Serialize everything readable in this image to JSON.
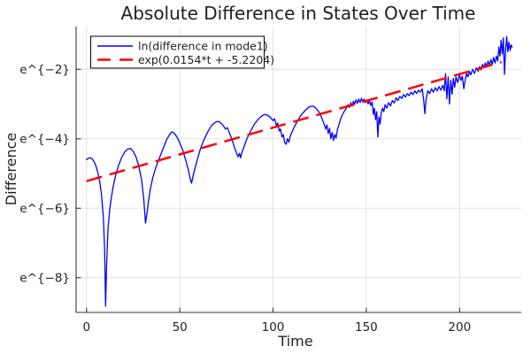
{
  "chart_data": {
    "type": "line",
    "title": "Absolute Difference in States Over Time",
    "xlabel": "Time",
    "ylabel": "Difference",
    "grid": true,
    "legend_position": "top-left",
    "y_scale": "log-e",
    "xlim": [
      -5.6,
      233.1
    ],
    "ylim": [
      -9.0,
      -0.77
    ],
    "x_ticks": {
      "values": [
        0,
        50,
        100,
        150,
        200
      ],
      "labels": [
        "0",
        "50",
        "100",
        "150",
        "200"
      ]
    },
    "y_ticks": {
      "values": [
        -2,
        -4,
        -6,
        -8
      ],
      "labels": [
        "e^{−2}",
        "e^{−4}",
        "e^{−6}",
        "e^{−8}"
      ]
    },
    "style": {
      "grid_color": "#e2e2e2",
      "axis_color": "#3a3a3a",
      "text_color": "#1f1f1f",
      "background": "#ffffff"
    },
    "series": [
      {
        "name": "ln(difference in mode1)",
        "color": "#0000ff",
        "style": "solid",
        "width": 1.3,
        "points": [
          [
            0,
            -4.6
          ],
          [
            1,
            -4.56
          ],
          [
            2,
            -4.55
          ],
          [
            3,
            -4.58
          ],
          [
            4,
            -4.66
          ],
          [
            5,
            -4.78
          ],
          [
            6,
            -4.96
          ],
          [
            7,
            -5.22
          ],
          [
            8,
            -5.6
          ],
          [
            9,
            -6.25
          ],
          [
            9.7,
            -7.2
          ],
          [
            10.2,
            -8.82
          ],
          [
            10.8,
            -7.55
          ],
          [
            11.5,
            -6.6
          ],
          [
            12.5,
            -6.0
          ],
          [
            13.5,
            -5.62
          ],
          [
            14.5,
            -5.32
          ],
          [
            16,
            -4.96
          ],
          [
            17.5,
            -4.72
          ],
          [
            19,
            -4.52
          ],
          [
            20.5,
            -4.38
          ],
          [
            22,
            -4.3
          ],
          [
            23.5,
            -4.28
          ],
          [
            25,
            -4.36
          ],
          [
            26.5,
            -4.52
          ],
          [
            28,
            -4.78
          ],
          [
            29.5,
            -5.18
          ],
          [
            30.7,
            -5.75
          ],
          [
            31.6,
            -6.43
          ],
          [
            32.4,
            -6.15
          ],
          [
            33.2,
            -5.8
          ],
          [
            34.2,
            -5.45
          ],
          [
            35.5,
            -5.12
          ],
          [
            37,
            -4.85
          ],
          [
            38.5,
            -4.63
          ],
          [
            40,
            -4.43
          ],
          [
            41.5,
            -4.22
          ],
          [
            43,
            -4.02
          ],
          [
            44.5,
            -3.88
          ],
          [
            45.8,
            -3.8
          ],
          [
            47,
            -3.84
          ],
          [
            48.5,
            -3.95
          ],
          [
            50,
            -4.12
          ],
          [
            51.5,
            -4.32
          ],
          [
            53,
            -4.58
          ],
          [
            54.5,
            -4.88
          ],
          [
            55.7,
            -5.18
          ],
          [
            56.3,
            -5.28
          ],
          [
            57,
            -5.1
          ],
          [
            58,
            -4.88
          ],
          [
            59.5,
            -4.58
          ],
          [
            61,
            -4.3
          ],
          [
            63,
            -4.02
          ],
          [
            65,
            -3.8
          ],
          [
            67,
            -3.62
          ],
          [
            68.5,
            -3.55
          ],
          [
            70,
            -3.5
          ],
          [
            71.5,
            -3.52
          ],
          [
            73,
            -3.6
          ],
          [
            74.5,
            -3.72
          ],
          [
            75.5,
            -3.68
          ],
          [
            76.5,
            -3.82
          ],
          [
            78,
            -4.02
          ],
          [
            79.5,
            -4.28
          ],
          [
            80.7,
            -4.45
          ],
          [
            81.3,
            -4.52
          ],
          [
            82,
            -4.42
          ],
          [
            82.6,
            -4.55
          ],
          [
            83.3,
            -4.4
          ],
          [
            84.5,
            -4.22
          ],
          [
            86,
            -4.0
          ],
          [
            88,
            -3.78
          ],
          [
            90,
            -3.58
          ],
          [
            92,
            -3.44
          ],
          [
            94,
            -3.34
          ],
          [
            95.5,
            -3.3
          ],
          [
            97,
            -3.32
          ],
          [
            98.5,
            -3.38
          ],
          [
            100,
            -3.48
          ],
          [
            100.8,
            -3.42
          ],
          [
            101.8,
            -3.62
          ],
          [
            102.5,
            -3.55
          ],
          [
            103.3,
            -3.78
          ],
          [
            104,
            -3.72
          ],
          [
            104.8,
            -3.95
          ],
          [
            105.5,
            -3.88
          ],
          [
            106.2,
            -4.1
          ],
          [
            107,
            -4.16
          ],
          [
            107.7,
            -4.0
          ],
          [
            108.5,
            -4.1
          ],
          [
            109.3,
            -3.92
          ],
          [
            110.2,
            -3.8
          ],
          [
            111.5,
            -3.65
          ],
          [
            113,
            -3.5
          ],
          [
            115,
            -3.32
          ],
          [
            117,
            -3.2
          ],
          [
            118.5,
            -3.12
          ],
          [
            120,
            -3.07
          ],
          [
            121.5,
            -3.06
          ],
          [
            123,
            -3.12
          ],
          [
            124.5,
            -3.22
          ],
          [
            126,
            -3.38
          ],
          [
            127.2,
            -3.55
          ],
          [
            128.2,
            -3.72
          ],
          [
            128.9,
            -3.6
          ],
          [
            129.6,
            -3.85
          ],
          [
            130.3,
            -3.7
          ],
          [
            131,
            -4.0
          ],
          [
            131.7,
            -3.82
          ],
          [
            132.4,
            -4.05
          ],
          [
            133.1,
            -3.88
          ],
          [
            133.8,
            -3.98
          ],
          [
            134.6,
            -3.72
          ],
          [
            135.4,
            -3.58
          ],
          [
            136.3,
            -3.42
          ],
          [
            137.3,
            -3.3
          ],
          [
            138.3,
            -3.2
          ],
          [
            139.3,
            -3.12
          ],
          [
            140.2,
            -3.02
          ],
          [
            141,
            -3.1
          ],
          [
            141.7,
            -2.96
          ],
          [
            142.4,
            -3.06
          ],
          [
            143.1,
            -2.92
          ],
          [
            143.8,
            -3.0
          ],
          [
            144.5,
            -2.88
          ],
          [
            145.2,
            -2.98
          ],
          [
            146,
            -2.86
          ],
          [
            146.7,
            -2.96
          ],
          [
            147.4,
            -2.84
          ],
          [
            148.1,
            -2.93
          ],
          [
            148.8,
            -2.86
          ],
          [
            149.5,
            -2.96
          ],
          [
            150.2,
            -2.88
          ],
          [
            151,
            -3.0
          ],
          [
            151.7,
            -2.9
          ],
          [
            152.4,
            -3.04
          ],
          [
            153.1,
            -2.94
          ],
          [
            153.8,
            -3.3
          ],
          [
            154.4,
            -3.12
          ],
          [
            155,
            -3.45
          ],
          [
            155.6,
            -3.22
          ],
          [
            156.2,
            -3.95
          ],
          [
            156.8,
            -3.38
          ],
          [
            157.4,
            -3.58
          ],
          [
            158,
            -3.26
          ],
          [
            158.7,
            -3.12
          ],
          [
            159.4,
            -3.22
          ],
          [
            160.1,
            -3.02
          ],
          [
            161,
            -3.12
          ],
          [
            162,
            -2.96
          ],
          [
            163,
            -3.06
          ],
          [
            164,
            -2.9
          ],
          [
            165,
            -2.97
          ],
          [
            166,
            -2.82
          ],
          [
            167,
            -2.9
          ],
          [
            168,
            -2.78
          ],
          [
            169,
            -2.84
          ],
          [
            170,
            -2.73
          ],
          [
            171,
            -2.8
          ],
          [
            172,
            -2.7
          ],
          [
            173,
            -2.76
          ],
          [
            174,
            -2.66
          ],
          [
            175,
            -2.73
          ],
          [
            176,
            -2.62
          ],
          [
            177,
            -2.7
          ],
          [
            178,
            -2.6
          ],
          [
            179,
            -2.66
          ],
          [
            180,
            -2.56
          ],
          [
            180.8,
            -2.9
          ],
          [
            181.4,
            -3.28
          ],
          [
            182.1,
            -2.86
          ],
          [
            183,
            -2.62
          ],
          [
            184,
            -2.7
          ],
          [
            185,
            -2.56
          ],
          [
            186,
            -2.66
          ],
          [
            187,
            -2.53
          ],
          [
            188,
            -2.62
          ],
          [
            189,
            -2.5
          ],
          [
            190,
            -2.6
          ],
          [
            191,
            -2.46
          ],
          [
            191.8,
            -2.62
          ],
          [
            192.5,
            -2.12
          ],
          [
            193.2,
            -2.85
          ],
          [
            193.9,
            -2.22
          ],
          [
            194.6,
            -3.0
          ],
          [
            195.3,
            -2.32
          ],
          [
            196,
            -2.72
          ],
          [
            196.7,
            -2.26
          ],
          [
            197.4,
            -2.52
          ],
          [
            198.1,
            -2.22
          ],
          [
            199,
            -2.38
          ],
          [
            200,
            -2.16
          ],
          [
            200.8,
            -2.32
          ],
          [
            201.5,
            -2.2
          ],
          [
            202.3,
            -2.56
          ],
          [
            203,
            -2.32
          ],
          [
            203.8,
            -2.12
          ],
          [
            204.5,
            -2.22
          ],
          [
            205.3,
            -2.06
          ],
          [
            206,
            -2.16
          ],
          [
            207,
            -2.0
          ],
          [
            208,
            -2.12
          ],
          [
            209,
            -1.96
          ],
          [
            210,
            -2.06
          ],
          [
            210.8,
            -1.92
          ],
          [
            211.5,
            -2.02
          ],
          [
            212.3,
            -1.86
          ],
          [
            213,
            -1.96
          ],
          [
            213.8,
            -1.82
          ],
          [
            214.5,
            -1.93
          ],
          [
            215.3,
            -1.76
          ],
          [
            216,
            -1.9
          ],
          [
            216.8,
            -1.72
          ],
          [
            217.5,
            -1.86
          ],
          [
            218.3,
            -1.66
          ],
          [
            219,
            -1.82
          ],
          [
            219.8,
            -1.62
          ],
          [
            220.5,
            -1.76
          ],
          [
            221.1,
            -1.36
          ],
          [
            221.7,
            -1.62
          ],
          [
            222.3,
            -1.16
          ],
          [
            222.9,
            -1.56
          ],
          [
            223.5,
            -1.1
          ],
          [
            224.1,
            -2.15
          ],
          [
            224.7,
            -1.46
          ],
          [
            225.3,
            -1.06
          ],
          [
            225.9,
            -1.5
          ],
          [
            226.5,
            -1.22
          ],
          [
            227.1,
            -1.46
          ],
          [
            227.7,
            -1.3
          ],
          [
            228.2,
            -1.36
          ]
        ]
      },
      {
        "name": "exp(0.0154*t + -5.2204)",
        "color": "#ff0000",
        "style": "dashed",
        "width": 2.5,
        "dash": "18 9",
        "slope": 0.0154,
        "intercept": -5.2204,
        "t_range": [
          0,
          222.5
        ]
      }
    ]
  }
}
